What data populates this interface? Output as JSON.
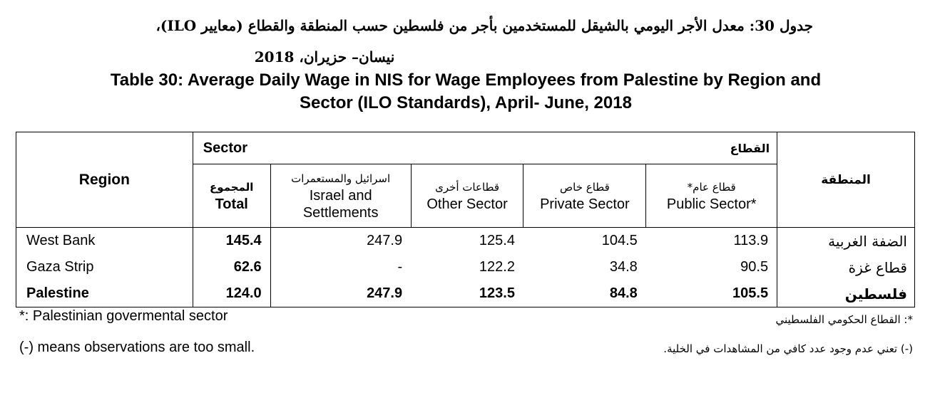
{
  "title_ar_line1": "جدول 30: معدل الأجر اليومي بالشيقل للمستخدمين بأجر من فلسطين حسب المنطقة والقطاع (معايير ILO)،",
  "title_ar_line2": "نيسان– حزيران، 2018",
  "title_en_line1": "Table 30: Average Daily Wage in NIS for Wage Employees from Palestine by Region and",
  "title_en_line2": "Sector (ILO Standards), April- June, 2018",
  "table": {
    "region_en_header": "Region",
    "region_ar_header": "المنطقة",
    "sector_en_header": "Sector",
    "sector_ar_header": "القطاع",
    "columns": [
      {
        "ar": "المجموع",
        "en": "Total"
      },
      {
        "ar": "اسرائيل والمستعمرات",
        "en": "Israel and Settlements"
      },
      {
        "ar": "قطاعات أخرى",
        "en": "Other Sector"
      },
      {
        "ar": "قطاع خاص",
        "en": "Private Sector"
      },
      {
        "ar": "قطاع عام*",
        "en": "Public Sector*"
      }
    ],
    "rows": [
      {
        "region_en": "West Bank",
        "region_ar": "الضفة الغربية",
        "values": [
          "145.4",
          "247.9",
          "125.4",
          "104.5",
          "113.9"
        ]
      },
      {
        "region_en": "Gaza Strip",
        "region_ar": "قطاع غزة",
        "values": [
          "62.6",
          "-",
          "122.2",
          "34.8",
          "90.5"
        ]
      },
      {
        "region_en": "Palestine",
        "region_ar": "فلسطين",
        "values": [
          "124.0",
          "247.9",
          "123.5",
          "84.8",
          "105.5"
        ]
      }
    ]
  },
  "notes": {
    "public_en": "*: Palestinian govermental sector",
    "public_ar": "*: القطاع الحكومي الفلسطيني",
    "small_en": "(-) means observations are too small.",
    "small_ar": "(-)  تعني عدم وجود عدد كافي من المشاهدات في الخلية."
  }
}
